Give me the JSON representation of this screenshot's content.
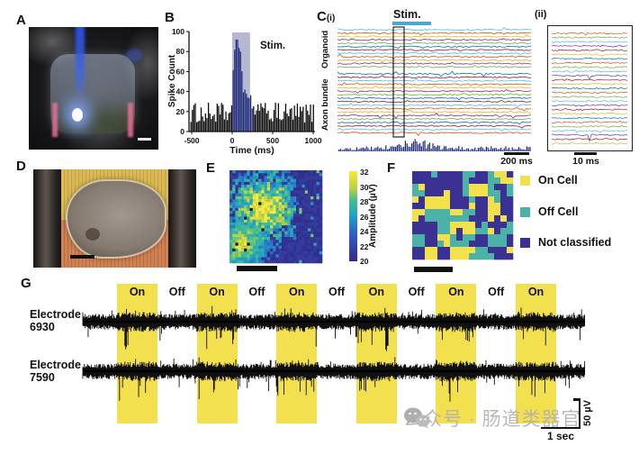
{
  "figure": {
    "background": "#ffffff",
    "watermark": {
      "icon": "wechat-icon",
      "text": "公众号 · 肠道类器官",
      "color": "#b2b2b2"
    }
  },
  "panels": {
    "A": {
      "label": "A"
    },
    "B": {
      "label": "B",
      "ylabel": "Spike Count",
      "xlabel": "Time (ms)",
      "yticks": [
        "0",
        "20",
        "40",
        "60",
        "80",
        "100"
      ],
      "xticks": [
        "-500",
        "0",
        "500",
        "1000"
      ],
      "stim_label": "Stim.",
      "stim_shade_color": "#b7b7d2",
      "bar_color": "#0d0d0d",
      "stim_bar_color": "#232f7c"
    },
    "C": {
      "label": "C",
      "sub_i": "(i)",
      "sub_ii": "(ii)",
      "stim_label": "Stim.",
      "stim_bar_color": "#4da6cf",
      "group_labels": [
        "Organoid",
        "Axon bundle"
      ],
      "scalebar_i": "200 ms",
      "scalebar_ii": "10 ms",
      "trace_colors": [
        "#4DBEEE",
        "#D95319",
        "#EDB120",
        "#7E2F8E",
        "#77AC30",
        "#0072BD",
        "#A2142F"
      ],
      "hist_color": "#1c2677"
    },
    "D": {
      "label": "D"
    },
    "E": {
      "label": "E",
      "colorbar_ticks": [
        "20",
        "22",
        "24",
        "26",
        "28",
        "30",
        "32"
      ],
      "colorbar_label": "Amplitude (µV)"
    },
    "F": {
      "label": "F",
      "legend": [
        {
          "label": "On Cell",
          "color": "#f2e14c"
        },
        {
          "label": "Off Cell",
          "color": "#4cb2a8"
        },
        {
          "label": "Not classified",
          "color": "#3a3193"
        }
      ]
    },
    "G": {
      "label": "G",
      "electrodes": [
        {
          "line1": "Electrode",
          "line2": "6930"
        },
        {
          "line1": "Electrode",
          "line2": "7590"
        }
      ],
      "stim_sequence": [
        "On",
        "Off",
        "On",
        "Off",
        "On",
        "Off",
        "On",
        "Off",
        "On",
        "Off",
        "On"
      ],
      "on_band_color": "#f3e04e",
      "scale_v": "50 µV",
      "scale_h": "1 sec"
    }
  },
  "chart_data": [
    {
      "panel": "B",
      "type": "bar",
      "title": "",
      "xlabel": "Time (ms)",
      "ylabel": "Spike Count",
      "xlim": [
        -500,
        1000
      ],
      "ylim": [
        0,
        100
      ],
      "xticks": [
        -500,
        0,
        500,
        1000
      ],
      "yticks": [
        0,
        20,
        40,
        60,
        80,
        100
      ],
      "description": "Peri-stimulus time histogram of spike counts; baseline ~10-30 counts, peak 92 shortly after stimulus onset",
      "stim_window_ms": [
        0,
        220
      ],
      "baseline_count_range": [
        9,
        30
      ],
      "peak_count": 92,
      "annotation": "Stim.",
      "grid": false,
      "legend": "none"
    },
    {
      "panel": "C(i)",
      "type": "line",
      "description": "Raster of 30 multichannel extracellular traces over ~1.4 s; 12 organoid channels (top) and 18 axon-bundle channels (bottom), population spike-rate histogram at bottom; black box marks zoom window expanded in C(ii); cyan bar above marks Stim. period",
      "n_traces": [
        12,
        18
      ],
      "group_labels": [
        "Organoid",
        "Axon bundle"
      ],
      "timebar": "200 ms",
      "annotation": "Stim."
    },
    {
      "panel": "C(ii)",
      "type": "line",
      "description": "Zoomed 10 ms window of the boxed region in C(i): ~27 channel traces with unit spikes",
      "n_traces": 27,
      "timebar": "10 ms"
    },
    {
      "panel": "E",
      "type": "heatmap",
      "title": "",
      "grid": [
        32,
        32
      ],
      "colormap": "parula",
      "value_range": [
        20,
        32
      ],
      "colorbar_ticks": [
        20,
        22,
        24,
        26,
        28,
        30,
        32
      ],
      "colorbar_label": "Amplitude (µV)",
      "description": "Spatial map of mean spike amplitude across the electrode array; high-amplitude (yellow ~30-32 µV) blob center-left, low (dark blue ~20-22 µV) periphery/right"
    },
    {
      "panel": "F",
      "type": "heatmap",
      "grid": [
        16,
        14
      ],
      "categories": [
        "On Cell",
        "Off Cell",
        "Not classified"
      ],
      "colors": [
        "#f2e14c",
        "#4cb2a8",
        "#3a3193"
      ],
      "description": "Classification map of electrode sites into On cells (yellow), Off cells (teal) and not classified (dark blue)"
    },
    {
      "panel": "G",
      "type": "line",
      "electrodes": [
        "Electrode 6930",
        "Electrode 7590"
      ],
      "stim_sequence": [
        "On",
        "Off",
        "On",
        "Off",
        "On",
        "Off",
        "On",
        "Off",
        "On",
        "Off",
        "On"
      ],
      "on_period_sec": 1,
      "off_period_sec": 1,
      "yscale": "50 µV",
      "xscale": "1 sec",
      "description": "Raw voltage traces from two electrodes during alternating 1-s light On (yellow bands) / Off periods; firing increases during On periods"
    }
  ]
}
